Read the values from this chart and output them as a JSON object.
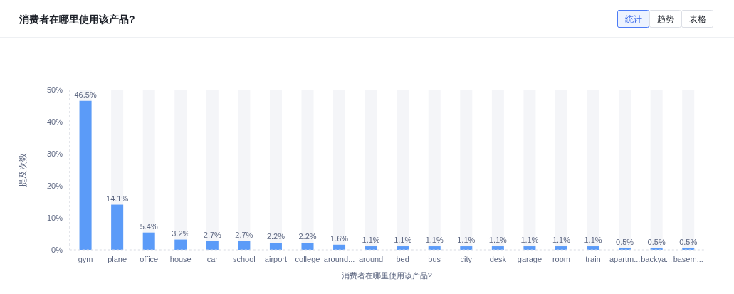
{
  "chart_data": {
    "type": "bar",
    "title": "消费者在哪里使用该产品?",
    "xlabel": "消费者在哪里使用该产品?",
    "ylabel": "提及次数",
    "annotations": [
      "统计",
      "趋势",
      "表格"
    ],
    "categories": [
      "gym",
      "plane",
      "office",
      "house",
      "car",
      "school",
      "airport",
      "college",
      "around...",
      "around",
      "bed",
      "bus",
      "city",
      "desk",
      "garage",
      "room",
      "train",
      "apartm...",
      "backya...",
      "basem..."
    ],
    "values": [
      46.5,
      14.1,
      5.4,
      3.2,
      2.7,
      2.7,
      2.2,
      2.2,
      1.6,
      1.1,
      1.1,
      1.1,
      1.1,
      1.1,
      1.1,
      1.1,
      1.1,
      0.5,
      0.5,
      0.5
    ],
    "value_labels": [
      "46.5%",
      "14.1%",
      "5.4%",
      "3.2%",
      "2.7%",
      "2.7%",
      "2.2%",
      "2.2%",
      "1.6%",
      "1.1%",
      "1.1%",
      "1.1%",
      "1.1%",
      "1.1%",
      "1.1%",
      "1.1%",
      "1.1%",
      "0.5%",
      "0.5%",
      "0.5%"
    ],
    "color": "#5b9bf8",
    "ylim": [
      0,
      50
    ],
    "yticks": [
      {
        "value": 0,
        "label": "0%"
      },
      {
        "value": 10,
        "label": "10%"
      },
      {
        "value": 20,
        "label": "20%"
      },
      {
        "value": 30,
        "label": "30%"
      },
      {
        "value": 40,
        "label": "40%"
      },
      {
        "value": 50,
        "label": "50%"
      }
    ]
  }
}
